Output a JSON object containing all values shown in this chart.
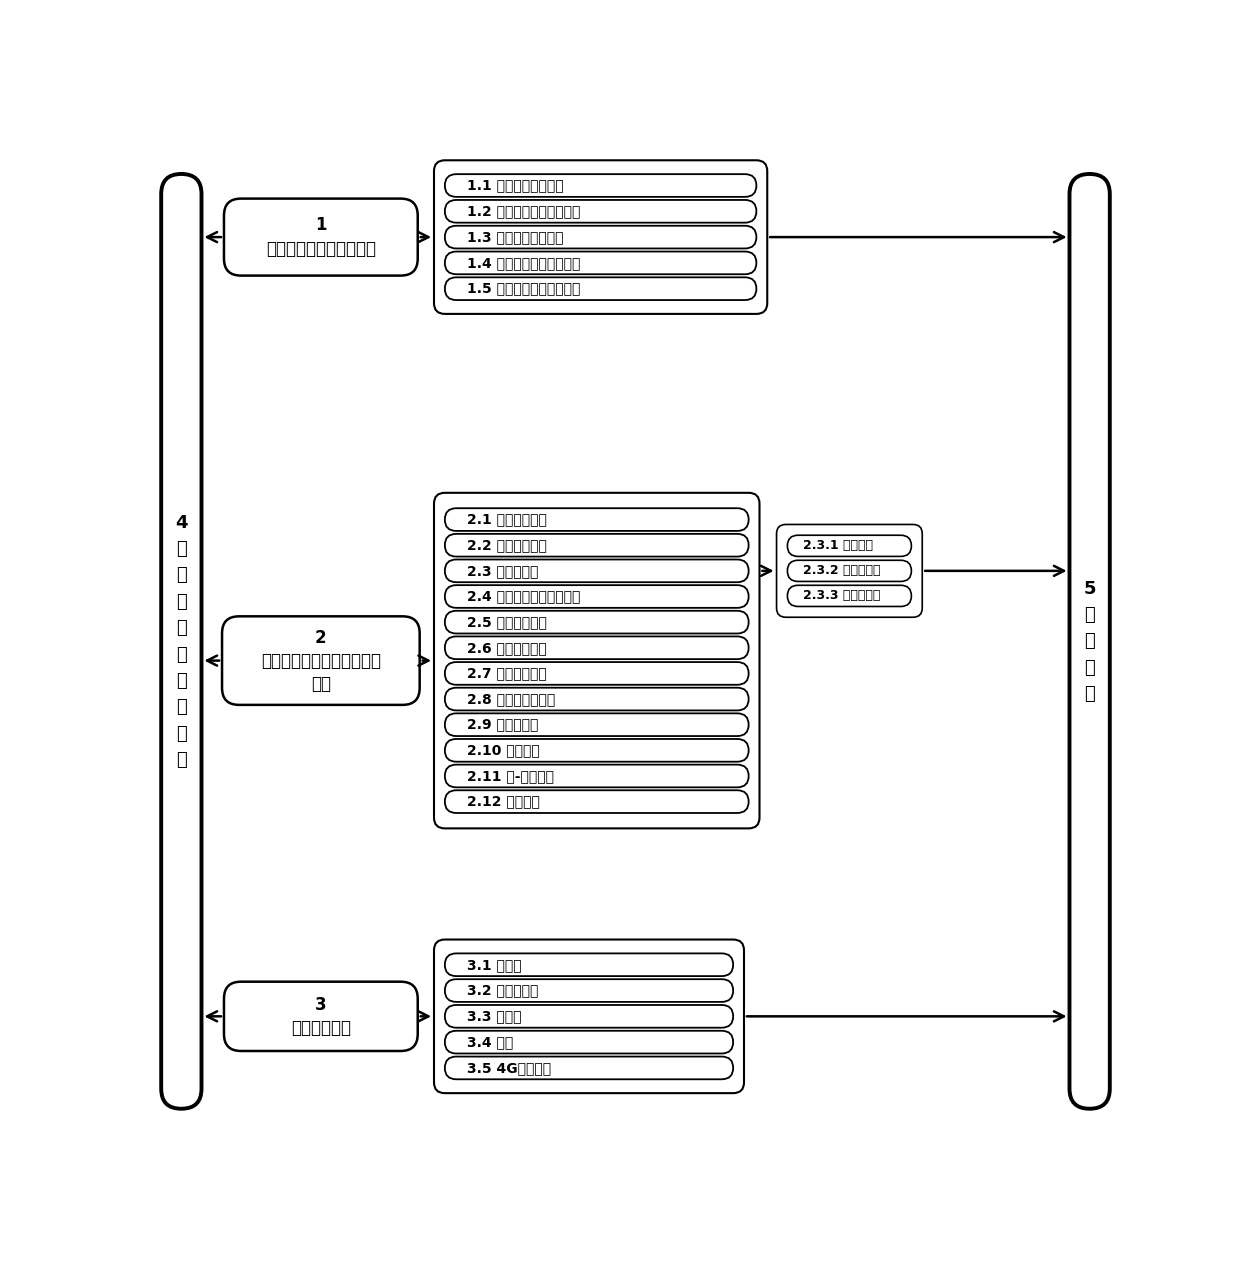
{
  "fig_width": 12.4,
  "fig_height": 12.7,
  "left_bar_label": "4\n云\n平\n台\n信\n息\n管\n理\n系\n统",
  "right_bar_label": "5\n电\n源\n系\n统",
  "section1_main": "1\n脑卒中运动康复评价系统",
  "section2_main": "2\n智能脑卒中运动康复机器人\n系统",
  "section3_main": "3\n远程医疗系统",
  "section1_items": [
    "1.1 全身状态评价系统",
    "1.2 神经功能障碍评价系统",
    "1.3 心理状态评价系统",
    "1.4 社会经济状态评价系统",
    "1.5 神经功能结局预测系统"
  ],
  "section2_items": [
    "2.1 运动想象模块",
    "2.2 脑机接口模块",
    "2.3 外骨骼模块",
    "2.4 表面肌电和电刺激模块",
    "2.5 视觉反馈模块",
    "2.6 重力补偿模块",
    "2.7 体重支持模块",
    "2.8 跑步训练机模块",
    "2.9 传感器模块",
    "2.10 控制模块",
    "2.11 人-机交模块",
    "2.12 驱动模块"
  ],
  "section2_sub_items": [
    "2.3.1 手外骨骼",
    "2.3.2 上肢外骨骼",
    "2.3.3 下肢外骨骼"
  ],
  "section3_items": [
    "3.1 计算机",
    "3.2 变焦摄像头",
    "3.3 麦克风",
    "3.4 音箱",
    "3.5 4G无线网卡"
  ],
  "lw_bar": 2.8,
  "lw_main": 1.8,
  "lw_group": 1.5,
  "lw_pill": 1.3,
  "lw_sub": 1.2,
  "fs_bar": 13,
  "fs_main": 12,
  "fs_item": 10,
  "fs_sub": 9
}
